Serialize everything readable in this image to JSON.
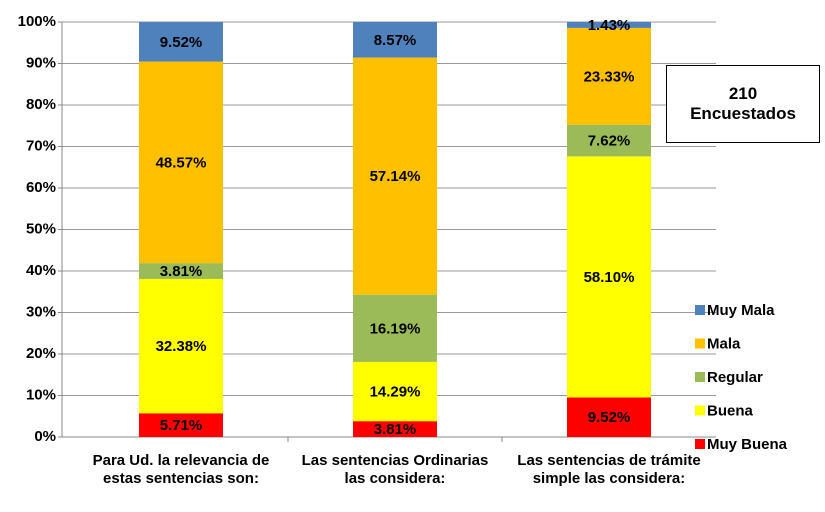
{
  "chart_data": {
    "type": "bar",
    "stacked": true,
    "categories": [
      "Para Ud. la relevancia de estas sentencias son:",
      "Las sentencias Ordinarias las considera:",
      "Las sentencias de trámite simple las considera:"
    ],
    "series": [
      {
        "name": "Muy Buena",
        "color": "#ff0000",
        "values": [
          5.71,
          3.81,
          9.52
        ],
        "value_labels": [
          "5.71%",
          "3.81%",
          "9.52%"
        ]
      },
      {
        "name": "Buena",
        "color": "#ffff00",
        "values": [
          32.38,
          14.29,
          58.1
        ],
        "value_labels": [
          "32.38%",
          "14.29%",
          "58.10%"
        ]
      },
      {
        "name": "Regular",
        "color": "#9bbb59",
        "values": [
          3.81,
          16.19,
          7.62
        ],
        "value_labels": [
          "3.81%",
          "16.19%",
          "7.62%"
        ]
      },
      {
        "name": "Mala",
        "color": "#ffc000",
        "values": [
          48.57,
          57.14,
          23.33
        ],
        "value_labels": [
          "48.57%",
          "57.14%",
          "23.33%"
        ]
      },
      {
        "name": "Muy Mala",
        "color": "#4f81bd",
        "values": [
          9.52,
          8.57,
          1.43
        ],
        "value_labels": [
          "9.52%",
          "8.57%",
          "1.43%"
        ]
      }
    ],
    "ylim": [
      0,
      100
    ],
    "yticks": [
      {
        "value": 0,
        "label": "0%"
      },
      {
        "value": 10,
        "label": "10%"
      },
      {
        "value": 20,
        "label": "20%"
      },
      {
        "value": 30,
        "label": "30%"
      },
      {
        "value": 40,
        "label": "40%"
      },
      {
        "value": 50,
        "label": "50%"
      },
      {
        "value": 60,
        "label": "60%"
      },
      {
        "value": 70,
        "label": "70%"
      },
      {
        "value": 80,
        "label": "80%"
      },
      {
        "value": 90,
        "label": "90%"
      },
      {
        "value": 100,
        "label": "100%"
      }
    ],
    "grid": true,
    "legend": "right",
    "annotation": "210\nEncuestados"
  }
}
